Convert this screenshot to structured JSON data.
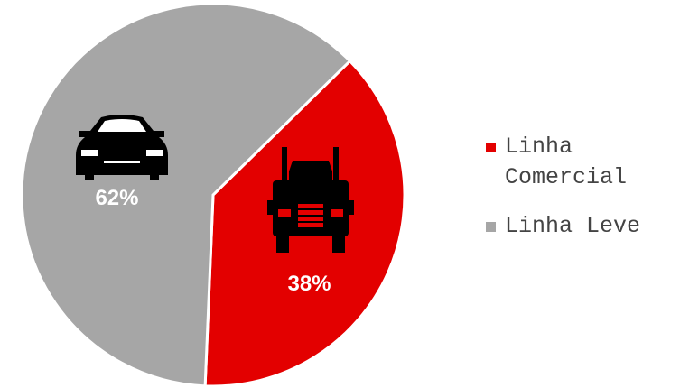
{
  "chart_data": {
    "type": "pie",
    "categories": [
      "Linha Comercial",
      "Linha Leve"
    ],
    "values": [
      38,
      62
    ],
    "value_labels": [
      "38%",
      "62%"
    ],
    "colors": [
      "#e30000",
      "#a6a6a6"
    ],
    "legend": "right"
  }
}
